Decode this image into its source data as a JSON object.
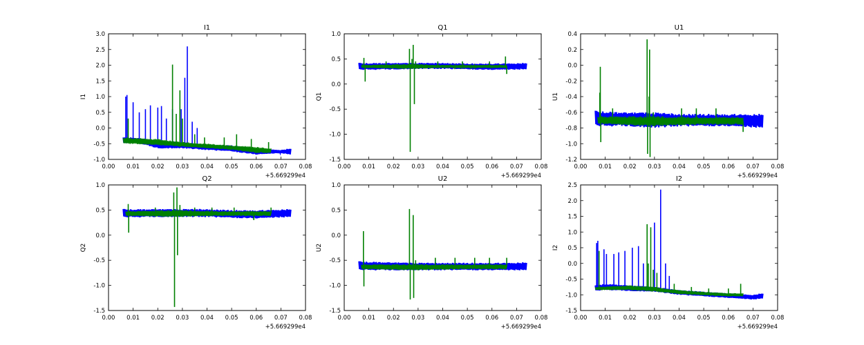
{
  "chart_data": [
    {
      "type": "line",
      "title": "I1",
      "ylabel": "I1",
      "xlabel": "",
      "offset_label": "+5.669299e4",
      "xlim": [
        0.0,
        0.08
      ],
      "ylim": [
        -1.0,
        3.0
      ],
      "xticks": [
        "0.00",
        "0.01",
        "0.02",
        "0.03",
        "0.04",
        "0.05",
        "0.06",
        "0.07",
        "0.08"
      ],
      "yticks": [
        "-1.0",
        "-0.5",
        "0.0",
        "0.5",
        "1.0",
        "1.5",
        "2.0",
        "2.5",
        "3.0"
      ],
      "series": [
        {
          "color": "#0000ff",
          "band": [
            [
              0.006,
              -0.3,
              -0.5
            ],
            [
              0.01,
              -0.3,
              -0.45
            ],
            [
              0.02,
              -0.4,
              -0.65
            ],
            [
              0.03,
              -0.45,
              -0.65
            ],
            [
              0.04,
              -0.55,
              -0.7
            ],
            [
              0.05,
              -0.55,
              -0.75
            ],
            [
              0.06,
              -0.65,
              -0.85
            ],
            [
              0.07,
              -0.7,
              -0.8
            ],
            [
              0.074,
              -0.65,
              -0.85
            ]
          ],
          "spikes": [
            [
              0.007,
              1.0
            ],
            [
              0.0075,
              1.05
            ],
            [
              0.01,
              0.82
            ],
            [
              0.0125,
              0.5
            ],
            [
              0.015,
              0.6
            ],
            [
              0.017,
              0.72
            ],
            [
              0.02,
              0.65
            ],
            [
              0.0215,
              0.7
            ],
            [
              0.0235,
              0.3
            ],
            [
              0.026,
              0.6
            ],
            [
              0.0295,
              0.6
            ],
            [
              0.031,
              1.6
            ],
            [
              0.032,
              2.6
            ],
            [
              0.034,
              0.2
            ],
            [
              0.036,
              0.0
            ]
          ]
        },
        {
          "color": "#008000",
          "band": [
            [
              0.006,
              -0.3,
              -0.5
            ],
            [
              0.02,
              -0.35,
              -0.55
            ],
            [
              0.03,
              -0.45,
              -0.6
            ],
            [
              0.04,
              -0.5,
              -0.65
            ],
            [
              0.05,
              -0.55,
              -0.7
            ],
            [
              0.06,
              -0.6,
              -0.8
            ],
            [
              0.066,
              -0.65,
              -0.8
            ]
          ],
          "spikes": [
            [
              0.008,
              0.3
            ],
            [
              0.026,
              2.02
            ],
            [
              0.0275,
              0.45
            ],
            [
              0.029,
              1.2
            ],
            [
              0.03,
              0.3
            ],
            [
              0.035,
              -0.2
            ],
            [
              0.039,
              -0.3
            ],
            [
              0.047,
              -0.3
            ],
            [
              0.052,
              -0.2
            ],
            [
              0.058,
              -0.35
            ],
            [
              0.065,
              -0.45
            ]
          ]
        }
      ]
    },
    {
      "type": "line",
      "title": "Q1",
      "ylabel": "Q1",
      "xlabel": "",
      "offset_label": "+5.669299e4",
      "xlim": [
        0.0,
        0.08
      ],
      "ylim": [
        -1.5,
        1.0
      ],
      "xticks": [
        "0.00",
        "0.01",
        "0.02",
        "0.03",
        "0.04",
        "0.05",
        "0.06",
        "0.07",
        "0.08"
      ],
      "yticks": [
        "-1.5",
        "-1.0",
        "-0.5",
        "0.0",
        "0.5",
        "1.0"
      ],
      "series": [
        {
          "color": "#0000ff",
          "band": [
            [
              0.006,
              0.42,
              0.28
            ],
            [
              0.02,
              0.42,
              0.29
            ],
            [
              0.03,
              0.42,
              0.3
            ],
            [
              0.04,
              0.42,
              0.3
            ],
            [
              0.05,
              0.41,
              0.29
            ],
            [
              0.06,
              0.41,
              0.28
            ],
            [
              0.074,
              0.42,
              0.29
            ]
          ],
          "spikes": []
        },
        {
          "color": "#008000",
          "band": [
            [
              0.007,
              0.38,
              0.32
            ],
            [
              0.027,
              0.4,
              0.3
            ],
            [
              0.04,
              0.38,
              0.32
            ],
            [
              0.066,
              0.38,
              0.32
            ]
          ],
          "spikes": [
            [
              0.008,
              0.52
            ],
            [
              0.0085,
              0.05
            ],
            [
              0.017,
              0.45
            ],
            [
              0.0265,
              0.7
            ],
            [
              0.0268,
              -1.35
            ],
            [
              0.0275,
              0.5
            ],
            [
              0.028,
              0.78
            ],
            [
              0.0285,
              -0.4
            ],
            [
              0.029,
              0.45
            ],
            [
              0.038,
              0.45
            ],
            [
              0.048,
              0.45
            ],
            [
              0.059,
              0.45
            ],
            [
              0.0655,
              0.55
            ],
            [
              0.066,
              0.2
            ]
          ]
        }
      ]
    },
    {
      "type": "line",
      "title": "U1",
      "ylabel": "U1",
      "xlabel": "",
      "offset_label": "+5.669299e4",
      "xlim": [
        0.0,
        0.08
      ],
      "ylim": [
        -1.2,
        0.4
      ],
      "xticks": [
        "0.00",
        "0.01",
        "0.02",
        "0.03",
        "0.04",
        "0.05",
        "0.06",
        "0.07",
        "0.08"
      ],
      "yticks": [
        "-1.2",
        "-1.0",
        "-0.8",
        "-0.6",
        "-0.4",
        "-0.2",
        "0.0",
        "0.2",
        "0.4"
      ],
      "series": [
        {
          "color": "#0000ff",
          "band": [
            [
              0.006,
              -0.58,
              -0.78
            ],
            [
              0.02,
              -0.6,
              -0.78
            ],
            [
              0.03,
              -0.6,
              -0.8
            ],
            [
              0.04,
              -0.62,
              -0.78
            ],
            [
              0.05,
              -0.62,
              -0.78
            ],
            [
              0.06,
              -0.62,
              -0.78
            ],
            [
              0.074,
              -0.62,
              -0.8
            ]
          ],
          "spikes": []
        },
        {
          "color": "#008000",
          "band": [
            [
              0.007,
              -0.65,
              -0.75
            ],
            [
              0.03,
              -0.65,
              -0.78
            ],
            [
              0.05,
              -0.66,
              -0.76
            ],
            [
              0.066,
              -0.66,
              -0.76
            ]
          ],
          "spikes": [
            [
              0.0078,
              -0.35
            ],
            [
              0.008,
              -0.02
            ],
            [
              0.0082,
              -0.98
            ],
            [
              0.013,
              -0.55
            ],
            [
              0.027,
              0.33
            ],
            [
              0.0272,
              -1.13
            ],
            [
              0.0278,
              -0.4
            ],
            [
              0.028,
              0.2
            ],
            [
              0.0282,
              -1.17
            ],
            [
              0.0295,
              -0.6
            ],
            [
              0.041,
              -0.55
            ],
            [
              0.047,
              -0.55
            ],
            [
              0.055,
              -0.55
            ],
            [
              0.066,
              -0.85
            ]
          ]
        }
      ]
    },
    {
      "type": "line",
      "title": "Q2",
      "ylabel": "Q2",
      "xlabel": "",
      "offset_label": "+5.669299e4",
      "xlim": [
        0.0,
        0.08
      ],
      "ylim": [
        -1.5,
        1.0
      ],
      "xticks": [
        "0.00",
        "0.01",
        "0.02",
        "0.03",
        "0.04",
        "0.05",
        "0.06",
        "0.07",
        "0.08"
      ],
      "yticks": [
        "-1.5",
        "-1.0",
        "-0.5",
        "0.0",
        "0.5",
        "1.0"
      ],
      "series": [
        {
          "color": "#0000ff",
          "band": [
            [
              0.006,
              0.52,
              0.35
            ],
            [
              0.02,
              0.52,
              0.36
            ],
            [
              0.03,
              0.52,
              0.36
            ],
            [
              0.04,
              0.52,
              0.36
            ],
            [
              0.05,
              0.5,
              0.34
            ],
            [
              0.06,
              0.5,
              0.33
            ],
            [
              0.074,
              0.52,
              0.36
            ]
          ],
          "spikes": []
        },
        {
          "color": "#008000",
          "band": [
            [
              0.007,
              0.48,
              0.38
            ],
            [
              0.027,
              0.5,
              0.36
            ],
            [
              0.045,
              0.48,
              0.38
            ],
            [
              0.066,
              0.48,
              0.38
            ]
          ],
          "spikes": [
            [
              0.008,
              0.62
            ],
            [
              0.0082,
              0.05
            ],
            [
              0.019,
              0.55
            ],
            [
              0.0265,
              0.85
            ],
            [
              0.0268,
              -1.43
            ],
            [
              0.0278,
              0.95
            ],
            [
              0.028,
              -0.4
            ],
            [
              0.029,
              0.6
            ],
            [
              0.035,
              0.55
            ],
            [
              0.042,
              0.55
            ],
            [
              0.051,
              0.55
            ],
            [
              0.059,
              0.3
            ],
            [
              0.066,
              0.55
            ]
          ]
        }
      ]
    },
    {
      "type": "line",
      "title": "U2",
      "ylabel": "U2",
      "xlabel": "",
      "offset_label": "+5.669299e4",
      "xlim": [
        0.0,
        0.08
      ],
      "ylim": [
        -1.5,
        1.0
      ],
      "xticks": [
        "0.00",
        "0.01",
        "0.02",
        "0.03",
        "0.04",
        "0.05",
        "0.06",
        "0.07",
        "0.08"
      ],
      "yticks": [
        "-1.5",
        "-1.0",
        "-0.5",
        "0.0",
        "0.5",
        "1.0"
      ],
      "series": [
        {
          "color": "#0000ff",
          "band": [
            [
              0.006,
              -0.52,
              -0.7
            ],
            [
              0.02,
              -0.54,
              -0.7
            ],
            [
              0.03,
              -0.55,
              -0.7
            ],
            [
              0.04,
              -0.55,
              -0.7
            ],
            [
              0.05,
              -0.55,
              -0.7
            ],
            [
              0.06,
              -0.55,
              -0.7
            ],
            [
              0.074,
              -0.54,
              -0.7
            ]
          ],
          "spikes": []
        },
        {
          "color": "#008000",
          "band": [
            [
              0.007,
              -0.58,
              -0.68
            ],
            [
              0.03,
              -0.58,
              -0.7
            ],
            [
              0.05,
              -0.58,
              -0.68
            ],
            [
              0.066,
              -0.58,
              -0.68
            ]
          ],
          "spikes": [
            [
              0.0078,
              0.08
            ],
            [
              0.008,
              -1.02
            ],
            [
              0.0265,
              0.52
            ],
            [
              0.0268,
              -1.28
            ],
            [
              0.028,
              0.4
            ],
            [
              0.0282,
              -1.25
            ],
            [
              0.029,
              -0.5
            ],
            [
              0.037,
              -0.45
            ],
            [
              0.045,
              -0.45
            ],
            [
              0.053,
              -0.45
            ],
            [
              0.059,
              -0.45
            ],
            [
              0.066,
              -0.45
            ]
          ]
        }
      ]
    },
    {
      "type": "line",
      "title": "I2",
      "ylabel": "I2",
      "xlabel": "",
      "offset_label": "+5.669299e4",
      "xlim": [
        0.0,
        0.08
      ],
      "ylim": [
        -1.5,
        2.5
      ],
      "xticks": [
        "0.00",
        "0.01",
        "0.02",
        "0.03",
        "0.04",
        "0.05",
        "0.06",
        "0.07",
        "0.08"
      ],
      "yticks": [
        "-1.5",
        "-1.0",
        "-0.5",
        "0.0",
        "0.5",
        "1.0",
        "1.5",
        "2.0",
        "2.5"
      ],
      "series": [
        {
          "color": "#0000ff",
          "band": [
            [
              0.006,
              -0.7,
              -0.88
            ],
            [
              0.01,
              -0.65,
              -0.85
            ],
            [
              0.02,
              -0.7,
              -0.88
            ],
            [
              0.03,
              -0.75,
              -0.9
            ],
            [
              0.04,
              -0.85,
              -1.0
            ],
            [
              0.05,
              -0.9,
              -1.05
            ],
            [
              0.06,
              -0.95,
              -1.1
            ],
            [
              0.07,
              -1.0,
              -1.15
            ],
            [
              0.074,
              -0.95,
              -1.12
            ]
          ],
          "spikes": [
            [
              0.0065,
              0.65
            ],
            [
              0.007,
              0.72
            ],
            [
              0.0095,
              0.45
            ],
            [
              0.0105,
              0.3
            ],
            [
              0.0135,
              0.3
            ],
            [
              0.0155,
              0.35
            ],
            [
              0.018,
              0.4
            ],
            [
              0.021,
              0.5
            ],
            [
              0.0235,
              0.55
            ],
            [
              0.0255,
              0.0
            ],
            [
              0.03,
              1.3
            ],
            [
              0.0325,
              2.35
            ],
            [
              0.0345,
              0.0
            ],
            [
              0.036,
              -0.4
            ]
          ]
        },
        {
          "color": "#008000",
          "band": [
            [
              0.006,
              -0.75,
              -0.85
            ],
            [
              0.02,
              -0.7,
              -0.85
            ],
            [
              0.03,
              -0.75,
              -0.9
            ],
            [
              0.04,
              -0.85,
              -0.98
            ],
            [
              0.05,
              -0.9,
              -1.02
            ],
            [
              0.06,
              -0.95,
              -1.05
            ],
            [
              0.066,
              -0.95,
              -1.05
            ]
          ],
          "spikes": [
            [
              0.0075,
              0.4
            ],
            [
              0.027,
              1.25
            ],
            [
              0.0275,
              0.0
            ],
            [
              0.0285,
              1.15
            ],
            [
              0.0295,
              -0.2
            ],
            [
              0.031,
              -0.3
            ],
            [
              0.038,
              -0.65
            ],
            [
              0.045,
              -0.75
            ],
            [
              0.052,
              -0.8
            ],
            [
              0.06,
              -0.8
            ],
            [
              0.065,
              -0.65
            ]
          ]
        }
      ]
    }
  ]
}
